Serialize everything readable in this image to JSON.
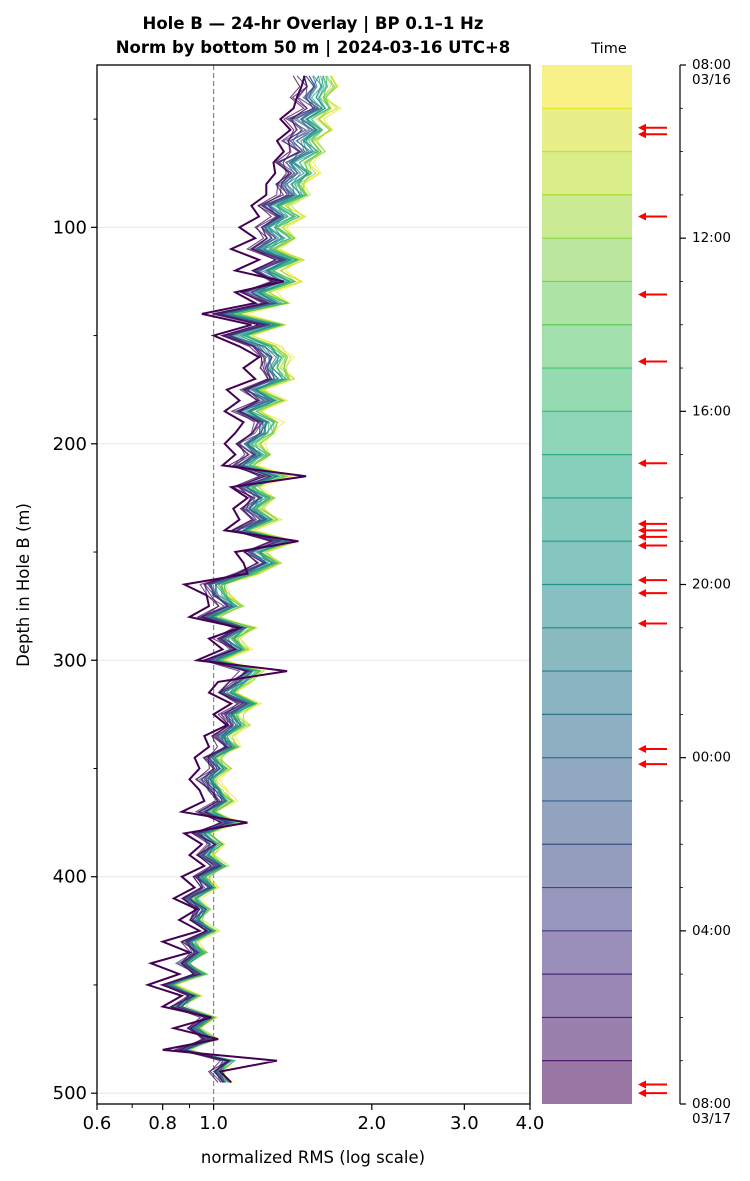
{
  "chart_data": {
    "type": "line",
    "title_line1": "Hole B — 24-hr Overlay  |  BP 0.1–1 Hz",
    "title_line2": "Norm by bottom 50 m  |  2024-03-16 UTC+8",
    "xlabel": "normalized RMS  (log scale)",
    "ylabel": "Depth in Hole B (m)",
    "x_scale": "log",
    "xlim": [
      0.6,
      4.0
    ],
    "ylim": [
      505,
      25
    ],
    "x_ticks": [
      {
        "value": 0.6,
        "label": "0.6"
      },
      {
        "value": 0.8,
        "label": "0.8"
      },
      {
        "value": 1.0,
        "label": "1.0"
      },
      {
        "value": 2.0,
        "label": "2.0"
      },
      {
        "value": 3.0,
        "label": "3.0"
      },
      {
        "value": 4.0,
        "label": "4.0"
      }
    ],
    "y_ticks": [
      {
        "value": 100,
        "label": "100"
      },
      {
        "value": 200,
        "label": "200"
      },
      {
        "value": 300,
        "label": "300"
      },
      {
        "value": 400,
        "label": "400"
      },
      {
        "value": 500,
        "label": "500"
      }
    ],
    "reference_line_x": 1.0,
    "grid": "horizontal",
    "depths": [
      30,
      35,
      40,
      45,
      50,
      55,
      60,
      65,
      70,
      75,
      80,
      85,
      90,
      95,
      100,
      105,
      110,
      115,
      120,
      125,
      130,
      135,
      140,
      145,
      150,
      155,
      160,
      165,
      170,
      175,
      180,
      185,
      190,
      195,
      200,
      205,
      210,
      215,
      220,
      225,
      230,
      235,
      240,
      245,
      250,
      255,
      260,
      265,
      270,
      275,
      280,
      285,
      290,
      295,
      300,
      305,
      310,
      315,
      320,
      325,
      330,
      335,
      340,
      345,
      350,
      355,
      360,
      365,
      370,
      375,
      380,
      385,
      390,
      395,
      400,
      405,
      410,
      415,
      420,
      425,
      430,
      435,
      440,
      445,
      450,
      455,
      460,
      465,
      470,
      475,
      480,
      485,
      490,
      495
    ],
    "base_profile": [
      1.45,
      1.48,
      1.43,
      1.5,
      1.38,
      1.45,
      1.36,
      1.42,
      1.32,
      1.38,
      1.3,
      1.34,
      1.22,
      1.3,
      1.2,
      1.26,
      1.16,
      1.3,
      1.18,
      1.28,
      1.14,
      1.24,
      1.0,
      1.22,
      1.04,
      1.18,
      1.24,
      1.22,
      1.26,
      1.12,
      1.22,
      1.09,
      1.2,
      1.18,
      1.1,
      1.16,
      1.08,
      1.24,
      1.1,
      1.18,
      1.12,
      1.2,
      1.08,
      1.3,
      1.14,
      1.22,
      1.1,
      0.96,
      0.98,
      1.04,
      0.94,
      1.1,
      1.02,
      1.08,
      0.96,
      1.14,
      1.08,
      1.02,
      1.12,
      1.04,
      1.08,
      1.0,
      1.04,
      0.96,
      1.0,
      0.94,
      0.98,
      1.02,
      0.94,
      1.04,
      0.92,
      0.98,
      0.94,
      1.0,
      0.92,
      0.96,
      0.88,
      0.94,
      0.9,
      0.96,
      0.88,
      0.92,
      0.86,
      0.92,
      0.8,
      0.9,
      0.84,
      0.96,
      0.9,
      0.97,
      0.86,
      1.05,
      1.0,
      1.04
    ],
    "num_traces": 24,
    "dark_trace": [
      1.49,
      1.47,
      1.44,
      1.42,
      1.34,
      1.4,
      1.32,
      1.36,
      1.3,
      1.31,
      1.26,
      1.26,
      1.18,
      1.22,
      1.12,
      1.2,
      1.08,
      1.22,
      1.1,
      1.36,
      1.1,
      1.2,
      0.95,
      1.18,
      1.0,
      1.12,
      1.22,
      1.14,
      1.2,
      1.06,
      1.12,
      1.05,
      1.14,
      1.1,
      1.05,
      1.1,
      1.04,
      1.5,
      1.08,
      1.16,
      1.09,
      1.12,
      1.05,
      1.45,
      1.1,
      1.14,
      1.16,
      0.88,
      0.97,
      0.98,
      0.9,
      1.12,
      0.98,
      1.04,
      0.93,
      1.38,
      1.02,
      0.98,
      1.08,
      1.0,
      1.06,
      0.96,
      0.98,
      0.92,
      0.94,
      0.9,
      0.94,
      0.96,
      0.87,
      1.16,
      0.88,
      0.95,
      0.9,
      0.96,
      0.87,
      0.92,
      0.84,
      0.93,
      0.86,
      0.94,
      0.8,
      0.9,
      0.76,
      0.86,
      0.75,
      0.87,
      0.8,
      0.99,
      0.84,
      1.02,
      0.8,
      1.32,
      1.03,
      1.08
    ],
    "colorbar": {
      "title": "Time",
      "ticks": [
        {
          "hour": 0,
          "label": "08:00",
          "sublabel": "03/16"
        },
        {
          "hour": 4,
          "label": "12:00",
          "sublabel": ""
        },
        {
          "hour": 8,
          "label": "16:00",
          "sublabel": ""
        },
        {
          "hour": 12,
          "label": "20:00",
          "sublabel": ""
        },
        {
          "hour": 16,
          "label": "00:00",
          "sublabel": ""
        },
        {
          "hour": 20,
          "label": "04:00",
          "sublabel": ""
        },
        {
          "hour": 24,
          "label": "08:00",
          "sublabel": "03/17"
        }
      ],
      "event_markers_hours": [
        1.45,
        1.6,
        3.5,
        5.3,
        6.85,
        9.2,
        10.6,
        10.75,
        10.9,
        11.1,
        11.9,
        12.2,
        12.9,
        15.8,
        16.15,
        23.55,
        23.75
      ]
    },
    "colors": {
      "viridis_stops": [
        "#440154",
        "#482475",
        "#414487",
        "#355f8d",
        "#2a788e",
        "#21918c",
        "#22a884",
        "#44bf70",
        "#7ad151",
        "#bddf26",
        "#fde725"
      ],
      "reference_line": "#888888",
      "arrow": "#ff0000",
      "grid": "#e8e8e8"
    }
  }
}
